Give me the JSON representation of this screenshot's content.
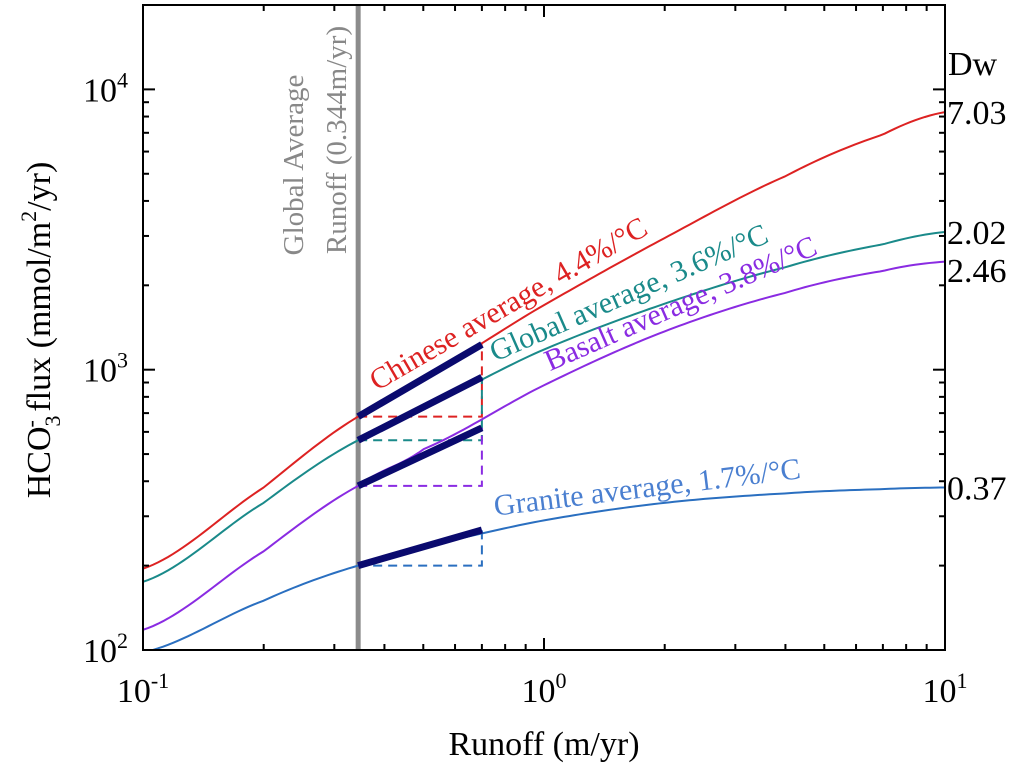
{
  "chart_data": {
    "type": "line",
    "x_scale": "log",
    "y_scale": "log",
    "xlim": [
      0.1,
      10
    ],
    "ylim": [
      100,
      20000
    ],
    "xlabel": "Runoff (m/yr)",
    "ylabel": {
      "prefix": "HCO",
      "sub": "3",
      "sup": "-",
      "middle": " flux (mmol/m",
      "sup2": "2",
      "suffix": "/yr)"
    },
    "x_ticks": [
      {
        "base": "10",
        "exp": "-1",
        "value": 0.1
      },
      {
        "base": "10",
        "exp": "0",
        "value": 1
      },
      {
        "base": "10",
        "exp": "1",
        "value": 10
      }
    ],
    "y_ticks": [
      {
        "base": "10",
        "exp": "2",
        "value": 100
      },
      {
        "base": "10",
        "exp": "3",
        "value": 1000
      },
      {
        "base": "10",
        "exp": "4",
        "value": 10000
      }
    ],
    "dw_header": "Dw",
    "vertical_line": {
      "x": 0.344,
      "color": "#8c8c8c",
      "label_line1": "Global Average",
      "label_line2": "Runoff (0.344m/yr)"
    },
    "highlight_x_range": [
      0.344,
      0.7
    ],
    "series": [
      {
        "name": "Chinese average, 4.4%/°C",
        "dw": "7.03",
        "color": "#dd2222",
        "x": [
          0.1,
          0.2,
          0.344,
          0.5,
          1,
          2,
          4,
          7,
          10
        ],
        "y": [
          195,
          380,
          680,
          950,
          1700,
          2950,
          4900,
          6900,
          8300
        ],
        "highlight": {
          "y_start": 680,
          "y_end": 1230
        }
      },
      {
        "name": "Global average, 3.6%/°C",
        "dw": "2.02",
        "color": "#1a8a8a",
        "x": [
          0.1,
          0.2,
          0.344,
          0.5,
          1,
          2,
          4,
          7,
          10
        ],
        "y": [
          175,
          335,
          560,
          740,
          1180,
          1720,
          2320,
          2800,
          3100
        ],
        "highlight": {
          "y_start": 560,
          "y_end": 940
        }
      },
      {
        "name": "Basalt average, 3.8%/°C",
        "dw": "2.46",
        "color": "#8a2be2",
        "x": [
          0.1,
          0.2,
          0.344,
          0.5,
          1,
          2,
          4,
          7,
          10
        ],
        "y": [
          118,
          225,
          385,
          520,
          880,
          1370,
          1880,
          2250,
          2430
        ],
        "highlight": {
          "y_start": 385,
          "y_end": 620
        }
      },
      {
        "name": "Granite average, 1.7%/°C",
        "dw": "0.37",
        "color": "#2a6fc0",
        "label_color": "#4a7fd0",
        "x": [
          0.1,
          0.2,
          0.344,
          0.5,
          1,
          2,
          4,
          7,
          10
        ],
        "y": [
          98,
          150,
          200,
          235,
          290,
          335,
          362,
          375,
          380
        ],
        "highlight": {
          "y_start": 200,
          "y_end": 268
        }
      }
    ]
  }
}
